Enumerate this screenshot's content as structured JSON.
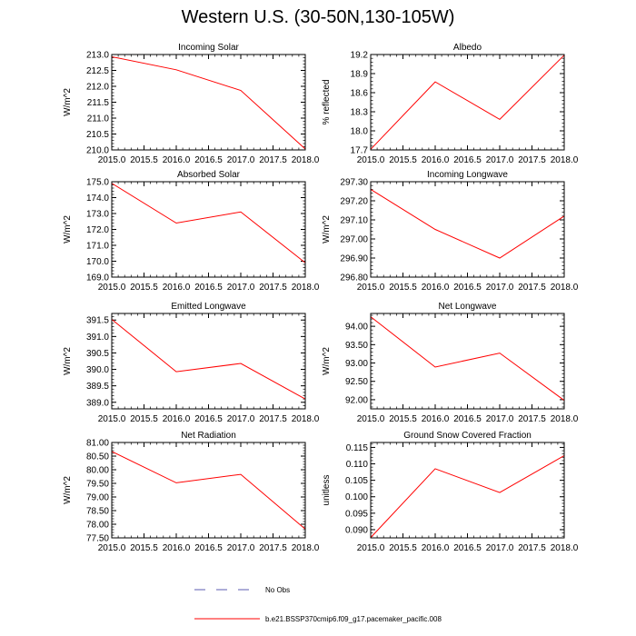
{
  "title": "Western U.S. (30-50N,130-105W)",
  "colors": {
    "model": "#ff0000",
    "obs": "#5b5bb0",
    "axis": "#000000"
  },
  "legend": {
    "obs_label": "No Obs",
    "model_label": "b.e21.BSSP370cmip6.f09_g17.pacemaker_pacific.008"
  },
  "chart_data": [
    {
      "type": "line",
      "title": "Incoming Solar",
      "xlabel": "",
      "ylabel": "W/m^2",
      "x": [
        2015,
        2016,
        2017,
        2018
      ],
      "xlim": [
        2015,
        2018
      ],
      "xticks": [
        "2015.0",
        "2015.5",
        "2016.0",
        "2016.5",
        "2017.0",
        "2017.5",
        "2018.0"
      ],
      "ylim": [
        210.0,
        213.0
      ],
      "yticks": [
        "210.0",
        "210.5",
        "211.0",
        "211.5",
        "212.0",
        "212.5",
        "213.0"
      ],
      "series": [
        {
          "name": "b.e21.BSSP370cmip6.f09_g17.pacemaker_pacific.008",
          "values": [
            212.93,
            212.52,
            211.87,
            210.03
          ]
        }
      ]
    },
    {
      "type": "line",
      "title": "Albedo",
      "xlabel": "",
      "ylabel": "% reflected",
      "x": [
        2015,
        2016,
        2017,
        2018
      ],
      "xlim": [
        2015,
        2018
      ],
      "xticks": [
        "2015.0",
        "2015.5",
        "2016.0",
        "2016.5",
        "2017.0",
        "2017.5",
        "2018.0"
      ],
      "ylim": [
        17.7,
        19.2
      ],
      "yticks": [
        "17.7",
        "18.0",
        "18.3",
        "18.6",
        "18.9",
        "19.2"
      ],
      "series": [
        {
          "name": "b.e21.BSSP370cmip6.f09_g17.pacemaker_pacific.008",
          "values": [
            17.71,
            18.77,
            18.18,
            19.19
          ]
        }
      ]
    },
    {
      "type": "line",
      "title": "Absorbed Solar",
      "xlabel": "",
      "ylabel": "W/m^2",
      "x": [
        2015,
        2016,
        2017,
        2018
      ],
      "xlim": [
        2015,
        2018
      ],
      "xticks": [
        "2015.0",
        "2015.5",
        "2016.0",
        "2016.5",
        "2017.0",
        "2017.5",
        "2018.0"
      ],
      "ylim": [
        169.0,
        175.0
      ],
      "yticks": [
        "169.0",
        "170.0",
        "171.0",
        "172.0",
        "173.0",
        "174.0",
        "175.0"
      ],
      "series": [
        {
          "name": "b.e21.BSSP370cmip6.f09_g17.pacemaker_pacific.008",
          "values": [
            174.9,
            172.4,
            173.1,
            169.9
          ]
        }
      ]
    },
    {
      "type": "line",
      "title": "Incoming Longwave",
      "xlabel": "",
      "ylabel": "W/m^2",
      "x": [
        2015,
        2016,
        2017,
        2018
      ],
      "xlim": [
        2015,
        2018
      ],
      "xticks": [
        "2015.0",
        "2015.5",
        "2016.0",
        "2016.5",
        "2017.0",
        "2017.5",
        "2018.0"
      ],
      "ylim": [
        296.8,
        297.3
      ],
      "yticks": [
        "296.80",
        "296.90",
        "297.00",
        "297.10",
        "297.20",
        "297.30"
      ],
      "series": [
        {
          "name": "b.e21.BSSP370cmip6.f09_g17.pacemaker_pacific.008",
          "values": [
            297.26,
            297.05,
            296.9,
            297.12
          ]
        }
      ]
    },
    {
      "type": "line",
      "title": "Emitted Longwave",
      "xlabel": "",
      "ylabel": "W/m^2",
      "x": [
        2015,
        2016,
        2017,
        2018
      ],
      "xlim": [
        2015,
        2018
      ],
      "xticks": [
        "2015.0",
        "2015.5",
        "2016.0",
        "2016.5",
        "2017.0",
        "2017.5",
        "2018.0"
      ],
      "ylim": [
        388.8,
        391.7
      ],
      "yticks": [
        "389.0",
        "389.5",
        "390.0",
        "390.5",
        "391.0",
        "391.5"
      ],
      "series": [
        {
          "name": "b.e21.BSSP370cmip6.f09_g17.pacemaker_pacific.008",
          "values": [
            391.52,
            389.93,
            390.18,
            389.1
          ]
        }
      ]
    },
    {
      "type": "line",
      "title": "Net Longwave",
      "xlabel": "",
      "ylabel": "W/m^2",
      "x": [
        2015,
        2016,
        2017,
        2018
      ],
      "xlim": [
        2015,
        2018
      ],
      "xticks": [
        "2015.0",
        "2015.5",
        "2016.0",
        "2016.5",
        "2017.0",
        "2017.5",
        "2018.0"
      ],
      "ylim": [
        91.75,
        94.35
      ],
      "yticks": [
        "92.00",
        "92.50",
        "93.00",
        "93.50",
        "94.00"
      ],
      "series": [
        {
          "name": "b.e21.BSSP370cmip6.f09_g17.pacemaker_pacific.008",
          "values": [
            94.26,
            92.89,
            93.27,
            91.98
          ]
        }
      ]
    },
    {
      "type": "line",
      "title": "Net Radiation",
      "xlabel": "",
      "ylabel": "W/m^2",
      "x": [
        2015,
        2016,
        2017,
        2018
      ],
      "xlim": [
        2015,
        2018
      ],
      "xticks": [
        "2015.0",
        "2015.5",
        "2016.0",
        "2016.5",
        "2017.0",
        "2017.5",
        "2018.0"
      ],
      "ylim": [
        77.5,
        81.0
      ],
      "yticks": [
        "77.50",
        "78.00",
        "78.50",
        "79.00",
        "79.50",
        "80.00",
        "80.50",
        "81.00"
      ],
      "series": [
        {
          "name": "b.e21.BSSP370cmip6.f09_g17.pacemaker_pacific.008",
          "values": [
            80.67,
            79.52,
            79.83,
            77.82
          ]
        }
      ]
    },
    {
      "type": "line",
      "title": "Ground Snow Covered Fraction",
      "xlabel": "",
      "ylabel": "unitless",
      "x": [
        2015,
        2016,
        2017,
        2018
      ],
      "xlim": [
        2015,
        2018
      ],
      "xticks": [
        "2015.0",
        "2015.5",
        "2016.0",
        "2016.5",
        "2017.0",
        "2017.5",
        "2018.0"
      ],
      "ylim": [
        0.0875,
        0.1165
      ],
      "yticks": [
        "0.090",
        "0.095",
        "0.100",
        "0.105",
        "0.110",
        "0.115"
      ],
      "series": [
        {
          "name": "b.e21.BSSP370cmip6.f09_g17.pacemaker_pacific.008",
          "values": [
            0.0876,
            0.1085,
            0.1013,
            0.1125
          ]
        }
      ]
    }
  ]
}
